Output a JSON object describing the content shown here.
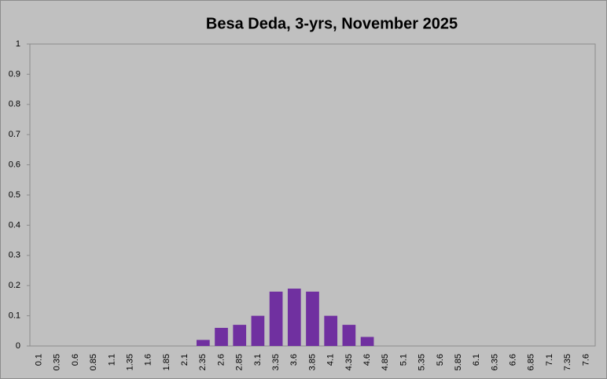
{
  "chart_data": {
    "type": "bar",
    "title": "Besa Deda, 3-yrs, November 2025",
    "categories": [
      "0.1",
      "0.35",
      "0.6",
      "0.85",
      "1.1",
      "1.35",
      "1.6",
      "1.85",
      "2.1",
      "2.35",
      "2.6",
      "2.85",
      "3.1",
      "3.35",
      "3.6",
      "3.85",
      "4.1",
      "4.35",
      "4.6",
      "4.85",
      "5.1",
      "5.35",
      "5.6",
      "5.85",
      "6.1",
      "6.35",
      "6.6",
      "6.85",
      "7.1",
      "7.35",
      "7.6"
    ],
    "values": [
      0,
      0,
      0,
      0,
      0,
      0,
      0,
      0,
      0,
      0.02,
      0.06,
      0.07,
      0.1,
      0.18,
      0.19,
      0.18,
      0.1,
      0.07,
      0.03,
      0,
      0,
      0,
      0,
      0,
      0,
      0,
      0,
      0,
      0,
      0,
      0
    ],
    "color": "#7030a0",
    "ylim": [
      0,
      1
    ],
    "yticks": [
      0,
      0.1,
      0.2,
      0.3,
      0.4,
      0.5,
      0.6,
      0.7,
      0.8,
      0.9,
      1
    ],
    "grid": false
  }
}
